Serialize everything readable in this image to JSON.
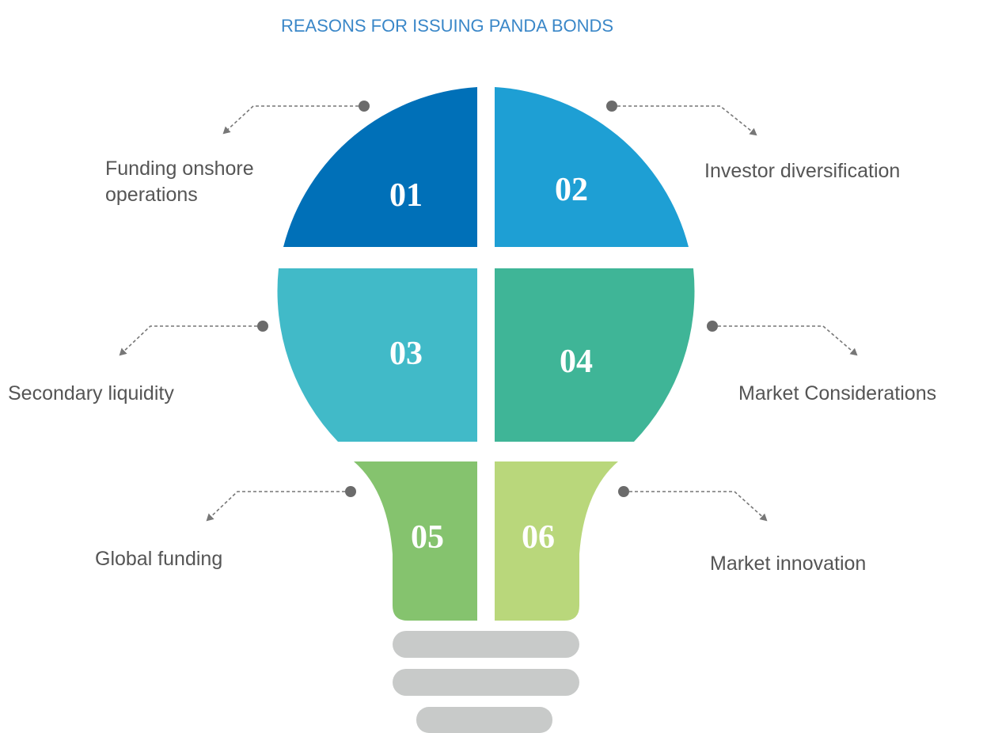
{
  "title": "REASONS FOR ISSUING PANDA BONDS",
  "items": [
    {
      "number": "01",
      "label_lines": [
        "Funding onshore",
        "operations"
      ]
    },
    {
      "number": "02",
      "label_lines": [
        "Investor diversification"
      ]
    },
    {
      "number": "03",
      "label_lines": [
        "Secondary liquidity"
      ]
    },
    {
      "number": "04",
      "label_lines": [
        "Market Considerations"
      ]
    },
    {
      "number": "05",
      "label_lines": [
        "Global funding"
      ]
    },
    {
      "number": "06",
      "label_lines": [
        "Market innovation"
      ]
    }
  ]
}
